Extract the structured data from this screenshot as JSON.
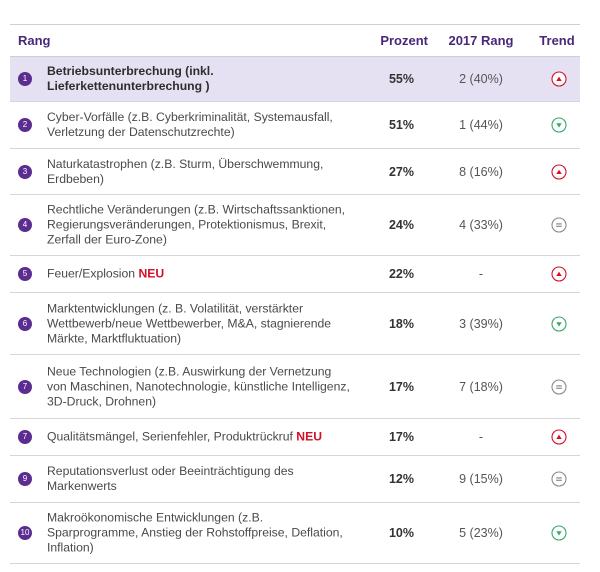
{
  "header": {
    "rank": "Rang",
    "percent": "Prozent",
    "rank2017": "2017 Rang",
    "trend": "Trend"
  },
  "colors": {
    "accent": "#5c2d91",
    "highlight_row": "#e6e1f2",
    "up": "#d40f2a",
    "down": "#3aa66b",
    "same": "#8a8a8a",
    "new_badge": "#d40f2a"
  },
  "rows": [
    {
      "num": "1",
      "text": "Betriebsunterbrechung (inkl. Lieferkettenunterbrechung )",
      "neu": "",
      "percent": "55%",
      "rank2017": "2 (40%)",
      "trend": "up-arrow-icon"
    },
    {
      "num": "2",
      "text": "Cyber-Vorfälle (z.B. Cyberkriminalität, Systemausfall, Verletzung der Datenschutzrechte)",
      "neu": "",
      "percent": "51%",
      "rank2017": "1 (44%)",
      "trend": "down-arrow-icon"
    },
    {
      "num": "3",
      "text": "Naturkatastrophen (z.B. Sturm, Überschwemmung, Erdbeben)",
      "neu": "",
      "percent": "27%",
      "rank2017": "8 (16%)",
      "trend": "up-arrow-icon"
    },
    {
      "num": "4",
      "text": "Rechtliche Veränderungen (z.B. Wirtschaftssanktionen, Regierungsveränderungen, Protektionismus, Brexit, Zerfall der Euro-Zone)",
      "neu": "",
      "percent": "24%",
      "rank2017": "4 (33%)",
      "trend": "equal-icon"
    },
    {
      "num": "5",
      "text": "Feuer/Explosion",
      "neu": "NEU",
      "percent": "22%",
      "rank2017": "-",
      "trend": "up-arrow-icon"
    },
    {
      "num": "6",
      "text": "Marktentwicklungen (z. B. Volatilität, verstärkter Wettbewerb/neue Wettbewerber, M&A, stagnierende Märkte, Marktfluktuation)",
      "neu": "",
      "percent": "18%",
      "rank2017": "3 (39%)",
      "trend": "down-arrow-icon"
    },
    {
      "num": "7",
      "text": "Neue Technologien (z.B. Auswirkung der Vernetzung von Maschinen, Nanotechnologie, künstliche Intelligenz, 3D-Druck, Drohnen)",
      "neu": "",
      "percent": "17%",
      "rank2017": "7 (18%)",
      "trend": "equal-icon"
    },
    {
      "num": "7",
      "text": "Qualitätsmängel, Serienfehler, Produktrückruf",
      "neu": "NEU",
      "percent": "17%",
      "rank2017": "-",
      "trend": "up-arrow-icon"
    },
    {
      "num": "9",
      "text": "Reputationsverlust oder Beeinträchtigung des Markenwerts",
      "neu": "",
      "percent": "12%",
      "rank2017": "9 (15%)",
      "trend": "equal-icon"
    },
    {
      "num": "10",
      "text": "Makroökonomische Entwicklungen (z.B. Sparprogramme, Anstieg der Rohstoffpreise, Deflation, Inflation)",
      "neu": "",
      "percent": "10%",
      "rank2017": "5 (23%)",
      "trend": "down-arrow-icon"
    }
  ]
}
